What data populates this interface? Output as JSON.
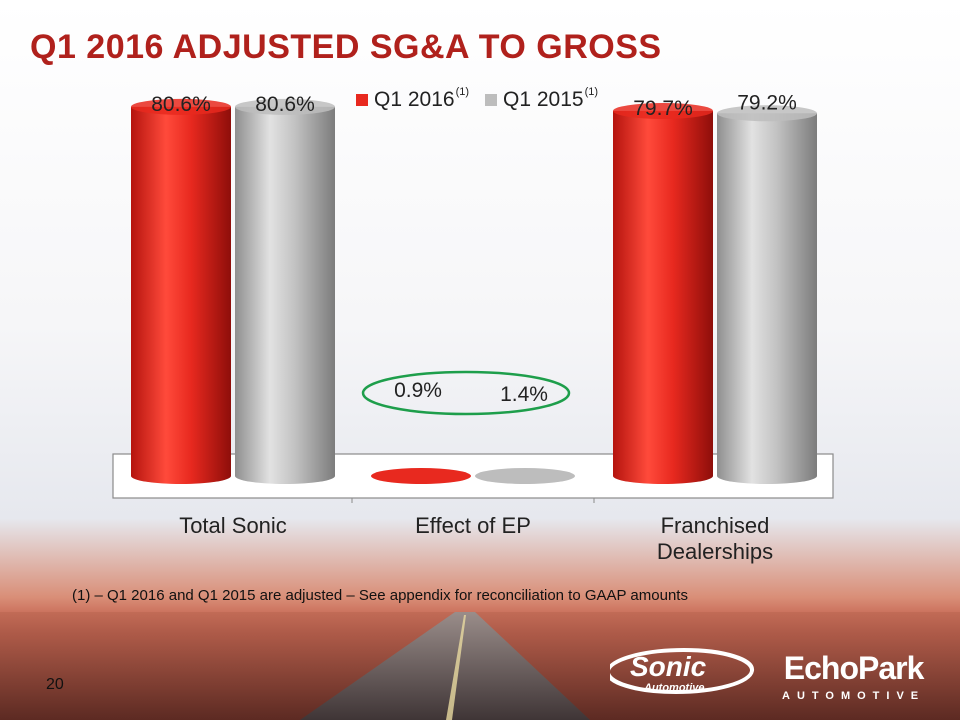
{
  "slide": {
    "title": "Q1 2016 ADJUSTED SG&A TO GROSS",
    "footnote": "(1) – Q1 2016 and Q1 2015 are adjusted – See appendix for reconciliation to GAAP amounts",
    "page_number": "20"
  },
  "legend": [
    {
      "label": "Q1 2016",
      "sup": "(1)",
      "color": "#e8291f"
    },
    {
      "label": "Q1 2015",
      "sup": "(1)",
      "color": "#bdbdbd"
    }
  ],
  "logos": {
    "sonic_line1": "Sonic",
    "sonic_line2": "Automotive",
    "echo_word": "EchoPark",
    "echo_sub": "AUTOMOTIVE"
  },
  "chart_data": {
    "type": "bar",
    "categories": [
      "Total Sonic",
      "Effect of EP",
      "Franchised Dealerships"
    ],
    "category_lines": [
      [
        "Total Sonic"
      ],
      [
        "Effect of EP"
      ],
      [
        "Franchised",
        "Dealerships"
      ]
    ],
    "series": [
      {
        "name": "Q1 2016",
        "sup": "(1)",
        "values": [
          80.6,
          0.9,
          79.7
        ],
        "labels": [
          "80.6%",
          "0.9%",
          "79.7%"
        ],
        "color": "#e8291f"
      },
      {
        "name": "Q1 2015",
        "sup": "(1)",
        "values": [
          80.6,
          1.4,
          79.2
        ],
        "labels": [
          "80.6%",
          "1.4%",
          "79.2%"
        ],
        "color": "#bdbdbd"
      }
    ],
    "title": "",
    "xlabel": "",
    "ylabel": "",
    "ylim": [
      0,
      100
    ],
    "legend_position": "top",
    "highlight_category": "Effect of EP",
    "highlight_color": "#1e9e4b"
  }
}
